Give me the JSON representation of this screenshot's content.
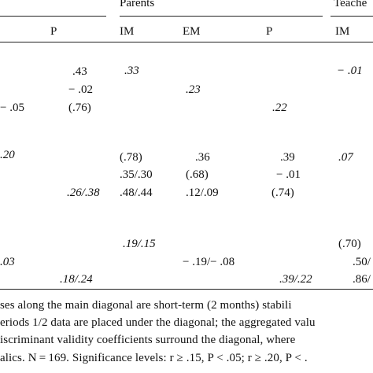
{
  "header": {
    "group_parents": "Parents",
    "group_teachers": "Teache",
    "col_p_left": "P",
    "col_im": "IM",
    "col_em": "EM",
    "col_p": "P",
    "col_im_teacher": "IM"
  },
  "cells": {
    "r1_p_a": ".43",
    "r1_p_b": "− .02",
    "r1_p_c": "(.76)",
    "r1_left": "− .05",
    "r1_im": ".33",
    "r1_em": ".23",
    "r1_p": ".22",
    "r1_tim": "− .01",
    "r2_im_a": "(.78)",
    "r2_im_b": ".35/.30",
    "r2_im_c": ".48/.44",
    "r2_em_a": ".36",
    "r2_em_b": "(.68)",
    "r2_em_c": ".12/.09",
    "r2_p_a": ".39",
    "r2_p_b": "− .01",
    "r2_p_c": "(.74)",
    "r2_tim": ".07",
    "r2_left": ".20",
    "r2_pl": ".26/.38",
    "r3_im": ".19/.15",
    "r3_em": "− .19/− .08",
    "r3_p": ".39/.22",
    "r3_t_a": "(.70)",
    "r3_t_b": ".50/",
    "r3_t_c": ".86/",
    "r3_left": ".03",
    "r3_pl": ".18/.24"
  },
  "note": {
    "line1": "ses along the main diagonal are short-term (2 months) stabili",
    "line2": "eriods 1/2 data are placed under the diagonal; the aggregated valu",
    "line3": "iscriminant validity coefficients surround the diagonal, where",
    "line4": "alics. N = 169. Significance levels: r ≥ .15, P < .05; r ≥ .20, P < ."
  }
}
